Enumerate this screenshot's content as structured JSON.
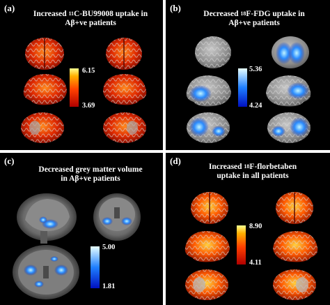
{
  "panels": {
    "a": {
      "label": "(a)",
      "title_line1_pre": "Increased ",
      "title_line1_sup": "11",
      "title_line1_post": "C-BU99008 uptake in",
      "title_line2": "Aβ+ve patients",
      "colorbar_max": "6.15",
      "colorbar_min": "3.69"
    },
    "b": {
      "label": "(b)",
      "title_line1_pre": "Decreased ",
      "title_line1_sup": "18",
      "title_line1_post": "F-FDG uptake in",
      "title_line2": "Aβ+ve patients",
      "colorbar_max": "5.36",
      "colorbar_min": "4.24"
    },
    "c": {
      "label": "(c)",
      "title_line1": "Decreased grey matter volume",
      "title_line2": "in Aβ+ve patients",
      "colorbar_max": "5.00",
      "colorbar_min": "1.81"
    },
    "d": {
      "label": "(d)",
      "title_line1_pre": "Increased ",
      "title_line1_sup": "18",
      "title_line1_post": "F-florbetaben",
      "title_line2": "uptake in all patients",
      "colorbar_max": "8.90",
      "colorbar_min": "4.11"
    }
  },
  "colors": {
    "hot_low": "#c00000",
    "hot_mid": "#ff6a00",
    "hot_high": "#ffff80",
    "cool_low": "#0020c0",
    "cool_mid": "#2a8cff",
    "cool_high": "#e0ffff",
    "brain_grey": "#9a9a9a",
    "background": "#000000"
  }
}
